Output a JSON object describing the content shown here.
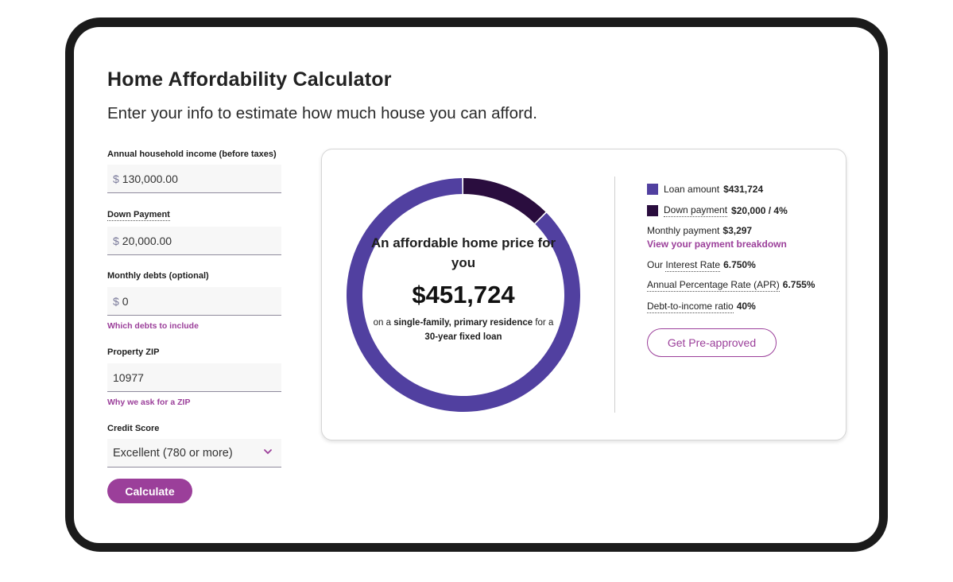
{
  "header": {
    "title": "Home Affordability Calculator",
    "subtitle": "Enter your info to estimate how much house you can afford."
  },
  "form": {
    "income": {
      "label": "Annual household income (before taxes)",
      "currency": "$",
      "value": "130,000.00"
    },
    "down_payment": {
      "label": "Down Payment",
      "currency": "$",
      "value": "20,000.00"
    },
    "monthly_debts": {
      "label": "Monthly debts (optional)",
      "currency": "$",
      "value": "0",
      "helper": "Which debts to include"
    },
    "zip": {
      "label": "Property ZIP",
      "value": "10977",
      "helper": "Why we ask for a ZIP"
    },
    "credit_score": {
      "label": "Credit Score",
      "selected": "Excellent (780 or more)"
    },
    "calculate_label": "Calculate"
  },
  "result": {
    "headline": "An affordable home price for you",
    "price": "$451,724",
    "note_on": "on a",
    "note_type": "single-family, primary residence",
    "note_for": "for a",
    "note_loan": "30-year fixed loan"
  },
  "details": {
    "loan_label": "Loan amount",
    "loan_value": "$431,724",
    "down_label": "Down payment",
    "down_value": "$20,000 / 4%",
    "monthly_label": "Monthly payment",
    "monthly_value": "$3,297",
    "breakdown_link": "View your payment breakdown",
    "interest_label_prefix": "Our",
    "interest_label": "Interest Rate",
    "interest_value": "6.750%",
    "apr_label": "Annual Percentage Rate (APR)",
    "apr_value": "6.755%",
    "dti_label": "Debt-to-income ratio",
    "dti_value": "40%",
    "preapproved_label": "Get Pre-approved"
  },
  "chart_data": {
    "type": "pie",
    "categories": [
      "Loan amount",
      "Down payment"
    ],
    "values": [
      431724,
      20000
    ],
    "colors": [
      "#5140a0",
      "#2a0d3e"
    ]
  },
  "colors": {
    "accent": "#9b3f9a",
    "loan": "#5140a0",
    "down": "#2a0d3e"
  }
}
